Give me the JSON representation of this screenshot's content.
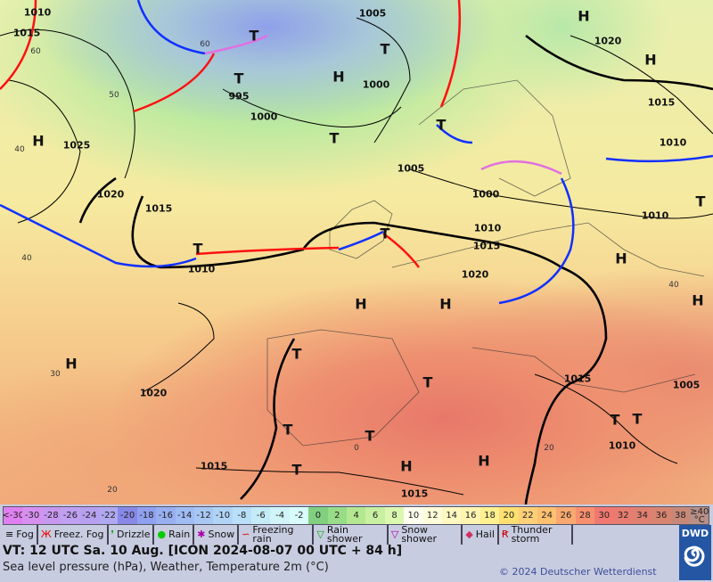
{
  "map": {
    "pressure_labels": [
      "1015",
      "1010",
      "1005",
      "995",
      "1000",
      "1000",
      "1025",
      "1020",
      "1015",
      "1010",
      "1005",
      "1000",
      "1010",
      "1015",
      "1020",
      "1015",
      "1010",
      "1010",
      "1020",
      "1010",
      "1015",
      "1005",
      "1020",
      "1015",
      "1015"
    ],
    "highs": [
      "H",
      "H",
      "H",
      "H",
      "H",
      "H",
      "H",
      "H",
      "H",
      "H",
      "H"
    ],
    "lows": [
      "T",
      "T",
      "T",
      "T",
      "T",
      "T",
      "T",
      "T",
      "T",
      "T",
      "T",
      "T",
      "T",
      "T",
      "T"
    ],
    "isotherm_labels": [
      "60",
      "60",
      "50",
      "40",
      "40",
      "40",
      "30",
      "20",
      "20",
      "0"
    ],
    "colors": {
      "warm_front": "#ff1010",
      "cold_front": "#1030ff",
      "occlusion": "#e070e0",
      "isobar": "#000000"
    }
  },
  "scale": {
    "labels": [
      "<-30",
      "-30",
      "-28",
      "-26",
      "-24",
      "-22",
      "-20",
      "-18",
      "-16",
      "-14",
      "-12",
      "-10",
      "-8",
      "-6",
      "-4",
      "-2",
      "0",
      "2",
      "4",
      "6",
      "8",
      "10",
      "12",
      "14",
      "16",
      "18",
      "20",
      "22",
      "24",
      "26",
      "28",
      "30",
      "32",
      "34",
      "36",
      "38",
      "≥40 °C"
    ],
    "colors": [
      "#e080f0",
      "#d890f0",
      "#c898f0",
      "#c0a0f0",
      "#b8a0f0",
      "#b0a8f0",
      "#8888e8",
      "#90a0f0",
      "#98b0f0",
      "#a0bcf4",
      "#a8c8f4",
      "#b0d4f8",
      "#b8e0f8",
      "#c4ecf8",
      "#d0f4f8",
      "#d8fcfc",
      "#80d080",
      "#98dc88",
      "#b4e890",
      "#c8f0a0",
      "#dcf8b0",
      "#fffff0",
      "#fffcd8",
      "#fff8c0",
      "#fff4b0",
      "#fff090",
      "#ffe070",
      "#ffd078",
      "#ffc070",
      "#f8a870",
      "#f89070",
      "#f07870",
      "#e87c70",
      "#e08070",
      "#d88470",
      "#c88878",
      "#b89088"
    ]
  },
  "legend": [
    {
      "icon": "fog-icon",
      "label": "Fog"
    },
    {
      "icon": "freezing-fog-icon",
      "label": "Freez. Fog"
    },
    {
      "icon": "drizzle-icon",
      "label": "Drizzle"
    },
    {
      "icon": "rain-icon",
      "label": "Rain"
    },
    {
      "icon": "snow-icon",
      "label": "Snow"
    },
    {
      "icon": "freezing-rain-icon",
      "label": "Freezing rain"
    },
    {
      "icon": "rain-shower-icon",
      "label": "Rain shower"
    },
    {
      "icon": "snow-shower-icon",
      "label": "Snow shower"
    },
    {
      "icon": "hail-icon",
      "label": "Hail"
    },
    {
      "icon": "thunderstorm-icon",
      "label": "Thunder storm"
    }
  ],
  "footer": {
    "valid_time": "VT: 12 UTC Sa.  10 Aug. [ICON 2024-08-07  00 UTC + 84 h]",
    "subtitle": "Sea level pressure (hPa), Weather, Temperature 2m (°C)",
    "copyright": "© 2024 Deutscher Wetterdienst",
    "logo": "DWD"
  }
}
